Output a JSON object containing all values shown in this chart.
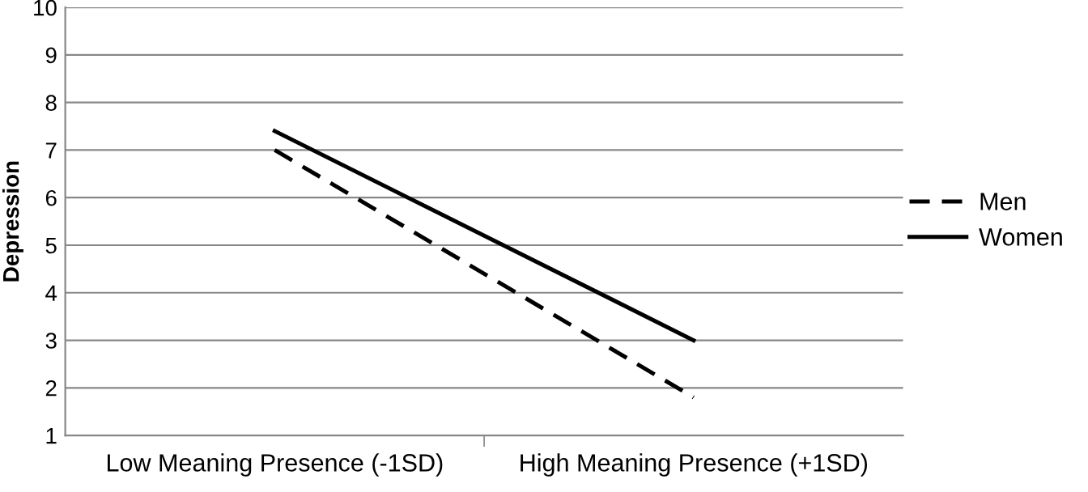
{
  "chart_data": {
    "type": "line",
    "ylabel": "Depression",
    "categories": [
      "Low Meaning Presence (-1SD)",
      "High Meaning Presence (+1SD)"
    ],
    "series": [
      {
        "name": "Men",
        "color": "#000000",
        "values": [
          7.0,
          1.8
        ],
        "line_style": "dashed"
      },
      {
        "name": "Women",
        "color": "#000000",
        "values": [
          7.4,
          3.0
        ],
        "line_style": "solid"
      }
    ],
    "ylim": [
      1,
      10
    ],
    "yticks": [
      1,
      2,
      3,
      4,
      5,
      6,
      7,
      8,
      9,
      10
    ],
    "grid": "y",
    "legend": "right",
    "marker": "none"
  }
}
